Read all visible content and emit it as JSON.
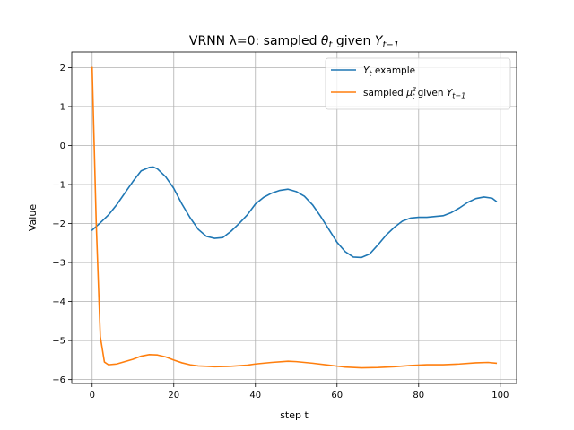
{
  "chart_data": {
    "type": "line",
    "title": "VRNN λ=0: sampled θ_t given Y_{t−1}",
    "xlabel": "step t",
    "ylabel": "Value",
    "xlim": [
      -5,
      104
    ],
    "ylim": [
      -6.1,
      2.4
    ],
    "xticks": [
      0,
      20,
      40,
      60,
      80,
      100
    ],
    "yticks": [
      2,
      1,
      0,
      -1,
      -2,
      -3,
      -4,
      -5,
      -6
    ],
    "xtick_labels": [
      "0",
      "20",
      "40",
      "60",
      "80",
      "100"
    ],
    "ytick_labels": [
      "2",
      "1",
      "0",
      "−1",
      "−2",
      "−3",
      "−4",
      "−5",
      "−6"
    ],
    "grid": true,
    "legend_position": "top-right",
    "series": [
      {
        "name": "Y_t example",
        "color": "#1f77b4",
        "points": [
          [
            0,
            -2.17
          ],
          [
            2,
            -1.98
          ],
          [
            4,
            -1.78
          ],
          [
            6,
            -1.52
          ],
          [
            8,
            -1.22
          ],
          [
            10,
            -0.92
          ],
          [
            12,
            -0.65
          ],
          [
            14,
            -0.56
          ],
          [
            15,
            -0.55
          ],
          [
            16,
            -0.6
          ],
          [
            18,
            -0.8
          ],
          [
            20,
            -1.1
          ],
          [
            22,
            -1.5
          ],
          [
            24,
            -1.85
          ],
          [
            26,
            -2.15
          ],
          [
            28,
            -2.33
          ],
          [
            30,
            -2.38
          ],
          [
            32,
            -2.36
          ],
          [
            34,
            -2.2
          ],
          [
            36,
            -2.0
          ],
          [
            38,
            -1.78
          ],
          [
            40,
            -1.5
          ],
          [
            42,
            -1.33
          ],
          [
            44,
            -1.22
          ],
          [
            46,
            -1.15
          ],
          [
            48,
            -1.12
          ],
          [
            50,
            -1.18
          ],
          [
            52,
            -1.3
          ],
          [
            54,
            -1.52
          ],
          [
            56,
            -1.82
          ],
          [
            58,
            -2.15
          ],
          [
            60,
            -2.48
          ],
          [
            62,
            -2.72
          ],
          [
            64,
            -2.86
          ],
          [
            66,
            -2.87
          ],
          [
            68,
            -2.78
          ],
          [
            70,
            -2.55
          ],
          [
            72,
            -2.3
          ],
          [
            74,
            -2.1
          ],
          [
            76,
            -1.94
          ],
          [
            78,
            -1.86
          ],
          [
            80,
            -1.84
          ],
          [
            82,
            -1.84
          ],
          [
            84,
            -1.82
          ],
          [
            86,
            -1.8
          ],
          [
            88,
            -1.72
          ],
          [
            90,
            -1.6
          ],
          [
            92,
            -1.46
          ],
          [
            94,
            -1.36
          ],
          [
            96,
            -1.32
          ],
          [
            98,
            -1.35
          ],
          [
            99,
            -1.43
          ]
        ]
      },
      {
        "name": "sampled μ_t^z given Y_{t−1}",
        "color": "#ff7f0e",
        "points": [
          [
            0,
            2.0
          ],
          [
            1,
            -2.0
          ],
          [
            2,
            -4.9
          ],
          [
            3,
            -5.55
          ],
          [
            4,
            -5.62
          ],
          [
            6,
            -5.6
          ],
          [
            8,
            -5.54
          ],
          [
            10,
            -5.48
          ],
          [
            12,
            -5.4
          ],
          [
            14,
            -5.36
          ],
          [
            16,
            -5.37
          ],
          [
            18,
            -5.42
          ],
          [
            20,
            -5.5
          ],
          [
            22,
            -5.57
          ],
          [
            24,
            -5.62
          ],
          [
            26,
            -5.65
          ],
          [
            28,
            -5.66
          ],
          [
            30,
            -5.67
          ],
          [
            34,
            -5.66
          ],
          [
            38,
            -5.63
          ],
          [
            40,
            -5.6
          ],
          [
            44,
            -5.56
          ],
          [
            48,
            -5.53
          ],
          [
            50,
            -5.54
          ],
          [
            54,
            -5.58
          ],
          [
            58,
            -5.63
          ],
          [
            62,
            -5.68
          ],
          [
            66,
            -5.7
          ],
          [
            70,
            -5.69
          ],
          [
            74,
            -5.67
          ],
          [
            78,
            -5.64
          ],
          [
            82,
            -5.62
          ],
          [
            86,
            -5.62
          ],
          [
            90,
            -5.6
          ],
          [
            94,
            -5.57
          ],
          [
            97,
            -5.56
          ],
          [
            99,
            -5.58
          ]
        ]
      }
    ]
  }
}
